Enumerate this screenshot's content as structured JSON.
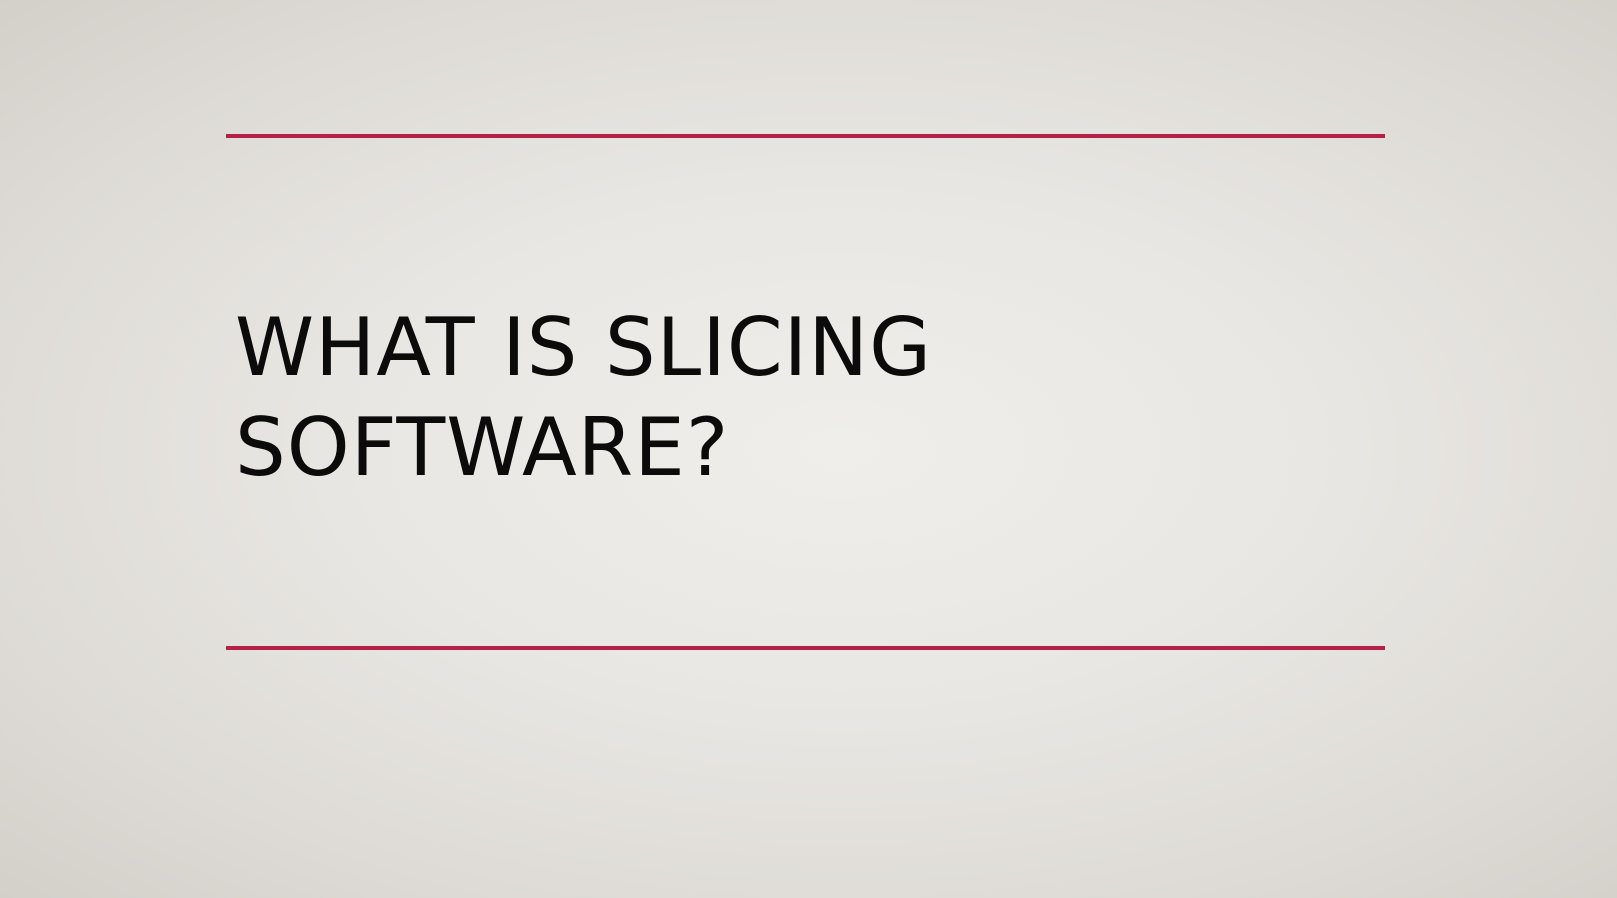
{
  "slide": {
    "title_lines": [
      "WHAT IS SLICING",
      "SOFTWARE?"
    ]
  },
  "colors": {
    "accent_rule": "#b52146",
    "title_text": "#0b0b0b",
    "background": "#e9e7e3"
  }
}
